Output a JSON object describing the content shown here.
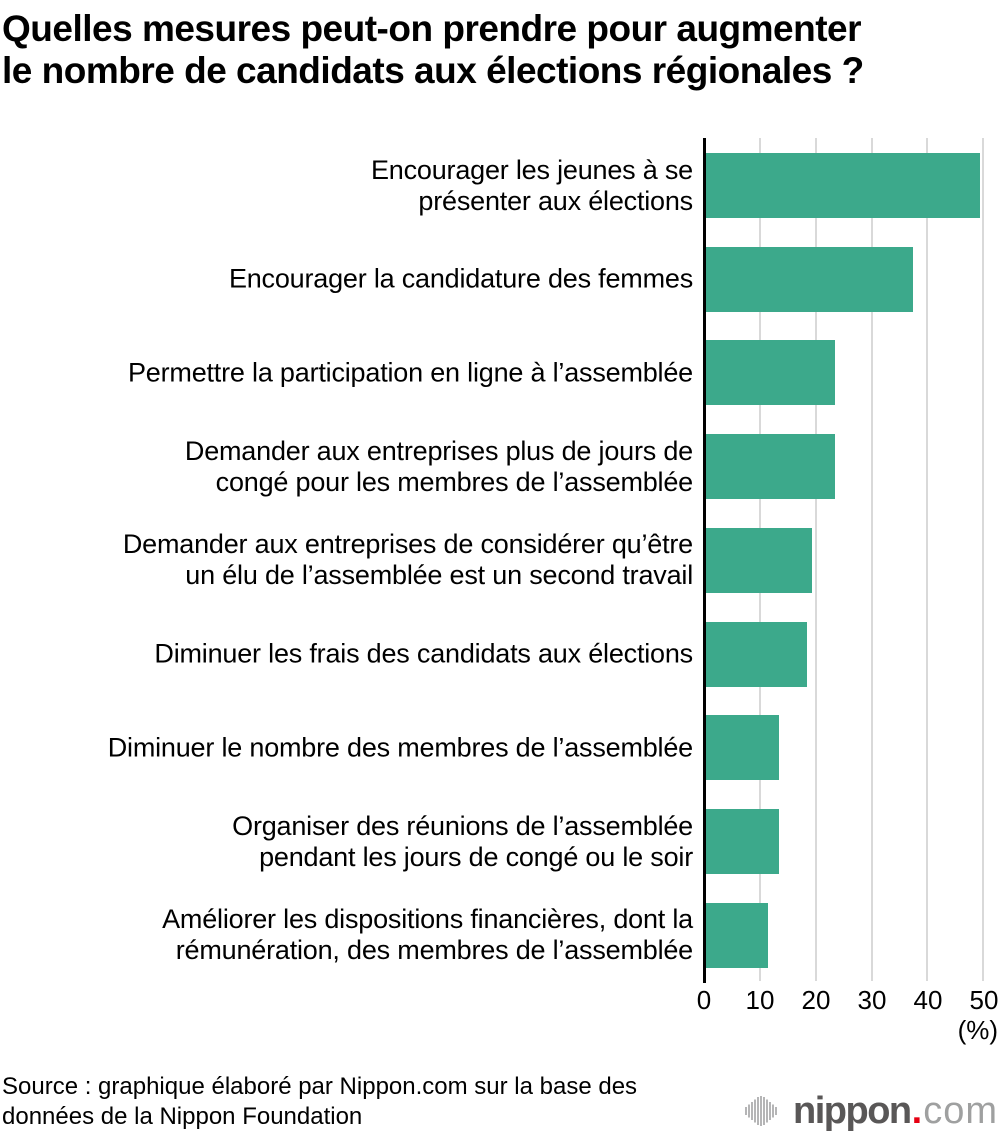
{
  "title_lines": [
    "Quelles mesures peut-on prendre pour augmenter",
    "le nombre de candidats aux élections régionales ?"
  ],
  "chart_data": {
    "type": "bar",
    "orientation": "horizontal",
    "title": "Quelles mesures peut-on prendre pour augmenter le nombre de candidats aux élections régionales ?",
    "categories": [
      "Encourager les jeunes à se présenter aux élections",
      "Encourager la candidature des femmes",
      "Permettre la participation en ligne à l’assemblée",
      "Demander aux entreprises plus de jours de congé pour les membres de l’assemblée",
      "Demander aux entreprises de considérer qu’être un élu de l’assemblée est un second travail",
      "Diminuer les frais des candidats aux élections",
      "Diminuer le nombre des membres de l’assemblée",
      "Organiser des réunions de l’assemblée pendant les jours de congé ou le soir",
      "Améliorer les dispositions financières, dont la rémunération, des membres de l’assemblée"
    ],
    "values": [
      49,
      37,
      23,
      23,
      19,
      18,
      13,
      13,
      11
    ],
    "unit": "%",
    "xlabel": "(%)",
    "xlim": [
      0,
      50
    ],
    "xticks": [
      "0",
      "10",
      "20",
      "30",
      "40",
      "50"
    ],
    "grid": true,
    "legend": false,
    "bar_color": "#3CA98B",
    "gridline_color": "#D9D9D9",
    "axis_color": "#000000"
  },
  "display": {
    "category_lines": [
      [
        "Encourager les jeunes à se",
        "présenter aux élections"
      ],
      [
        "Encourager la candidature des femmes"
      ],
      [
        "Permettre la participation en ligne à l’assemblée"
      ],
      [
        "Demander aux entreprises plus de jours de",
        "congé pour les membres de l’assemblée"
      ],
      [
        "Demander aux entreprises de considérer qu’être",
        "un élu de l’assemblée est un second travail"
      ],
      [
        "Diminuer les frais des candidats aux élections"
      ],
      [
        "Diminuer le nombre des membres de l’assemblée"
      ],
      [
        "Organiser des réunions de l’assemblée",
        "pendant les jours de congé ou le soir"
      ],
      [
        "Améliorer les dispositions financières, dont la",
        "rémunération, des membres de l’assemblée"
      ]
    ]
  },
  "source_lines": [
    "Source : graphique élaboré par Nippon.com sur la base des",
    "données de la Nippon Foundation"
  ],
  "logo": {
    "word_bold": "nippon",
    "dot": ".",
    "word_light": "com",
    "icon": "soundwave-bars-icon",
    "colors": {
      "word_bold": "#595757",
      "word_light": "#9FA0A0",
      "dot": "#E60012",
      "icon": "#B5B5B6"
    }
  }
}
